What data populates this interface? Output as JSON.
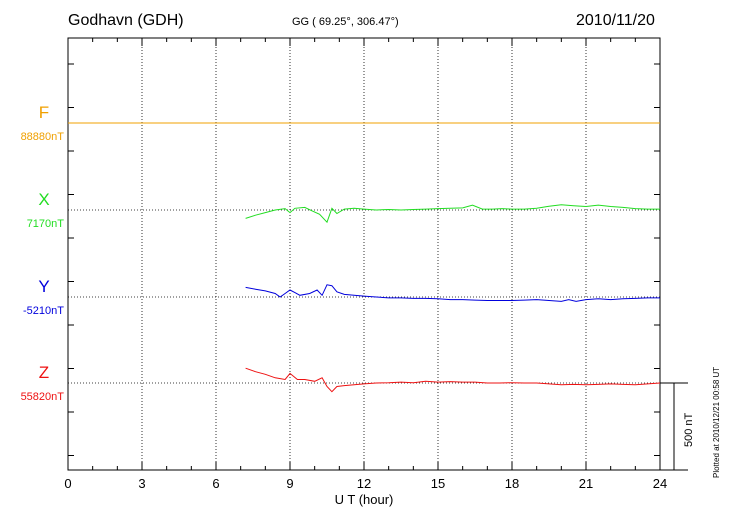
{
  "header": {
    "station": "Godhavn (GDH)",
    "coords": "GG ( 69.25°, 306.47°)",
    "date": "2010/11/20"
  },
  "side_note": "Plotted at 2010/12/21 00:58 UT",
  "scale_label": "500 nT",
  "colors": {
    "F": "#f0a000",
    "X": "#22dd22",
    "Y": "#0000dd",
    "Z": "#ee1111",
    "axis": "#000000"
  },
  "chart_data": {
    "type": "line",
    "title": "Godhavn (GDH)",
    "xlabel": "U T (hour)",
    "ylabel": "",
    "xlim": [
      0,
      24
    ],
    "x_ticks": [
      0,
      3,
      6,
      9,
      12,
      15,
      18,
      21,
      24
    ],
    "x_tick_labels": [
      "0",
      "3",
      "6",
      "9",
      "12",
      "15",
      "18",
      "21",
      "24"
    ],
    "scale_bar_nT": 500,
    "grid": true,
    "series": [
      {
        "name": "F",
        "label": "F",
        "baseline_label": "88880nT",
        "baseline_nT": 88880,
        "points": [
          [
            0,
            0
          ],
          [
            24,
            0
          ]
        ]
      },
      {
        "name": "X",
        "label": "X",
        "baseline_label": "7170nT",
        "baseline_nT": 7170,
        "points": [
          [
            7.2,
            -48
          ],
          [
            7.6,
            -30
          ],
          [
            8.0,
            -15
          ],
          [
            8.4,
            0
          ],
          [
            8.8,
            8
          ],
          [
            9.0,
            -15
          ],
          [
            9.2,
            10
          ],
          [
            9.6,
            15
          ],
          [
            9.9,
            -5
          ],
          [
            10.2,
            -25
          ],
          [
            10.5,
            -70
          ],
          [
            10.7,
            10
          ],
          [
            10.9,
            -20
          ],
          [
            11.2,
            5
          ],
          [
            11.6,
            10
          ],
          [
            12.0,
            5
          ],
          [
            12.5,
            0
          ],
          [
            13.0,
            3
          ],
          [
            13.5,
            0
          ],
          [
            14.0,
            3
          ],
          [
            14.5,
            5
          ],
          [
            15.0,
            8
          ],
          [
            15.5,
            10
          ],
          [
            16.0,
            12
          ],
          [
            16.4,
            28
          ],
          [
            16.8,
            5
          ],
          [
            17.2,
            5
          ],
          [
            17.6,
            8
          ],
          [
            18.0,
            5
          ],
          [
            18.5,
            5
          ],
          [
            19.0,
            10
          ],
          [
            19.5,
            22
          ],
          [
            20.0,
            30
          ],
          [
            20.5,
            25
          ],
          [
            21.0,
            20
          ],
          [
            21.5,
            28
          ],
          [
            22.0,
            20
          ],
          [
            22.5,
            15
          ],
          [
            23.0,
            8
          ],
          [
            23.5,
            5
          ],
          [
            24.0,
            5
          ]
        ]
      },
      {
        "name": "Y",
        "label": "Y",
        "baseline_label": "-5210nT",
        "baseline_nT": -5210,
        "points": [
          [
            7.2,
            55
          ],
          [
            7.6,
            45
          ],
          [
            8.0,
            35
          ],
          [
            8.4,
            20
          ],
          [
            8.6,
            0
          ],
          [
            8.8,
            20
          ],
          [
            9.0,
            40
          ],
          [
            9.2,
            25
          ],
          [
            9.4,
            10
          ],
          [
            9.8,
            20
          ],
          [
            10.1,
            40
          ],
          [
            10.3,
            10
          ],
          [
            10.5,
            70
          ],
          [
            10.7,
            65
          ],
          [
            10.9,
            30
          ],
          [
            11.2,
            15
          ],
          [
            11.6,
            10
          ],
          [
            12.0,
            5
          ],
          [
            12.5,
            0
          ],
          [
            13.0,
            -5
          ],
          [
            13.5,
            -5
          ],
          [
            14.0,
            -8
          ],
          [
            14.5,
            -8
          ],
          [
            15.0,
            -10
          ],
          [
            15.5,
            -15
          ],
          [
            16.0,
            -15
          ],
          [
            16.5,
            -18
          ],
          [
            17.0,
            -20
          ],
          [
            17.5,
            -20
          ],
          [
            18.0,
            -20
          ],
          [
            18.5,
            -18
          ],
          [
            19.0,
            -15
          ],
          [
            19.5,
            -20
          ],
          [
            20.0,
            -25
          ],
          [
            20.3,
            -15
          ],
          [
            20.6,
            -25
          ],
          [
            21.0,
            -15
          ],
          [
            21.5,
            -10
          ],
          [
            22.0,
            -15
          ],
          [
            22.5,
            -10
          ],
          [
            23.0,
            -8
          ],
          [
            23.5,
            -5
          ],
          [
            24.0,
            -5
          ]
        ]
      },
      {
        "name": "Z",
        "label": "Z",
        "baseline_label": "55820nT",
        "baseline_nT": 55820,
        "points": [
          [
            7.2,
            85
          ],
          [
            7.6,
            65
          ],
          [
            8.0,
            50
          ],
          [
            8.4,
            30
          ],
          [
            8.8,
            20
          ],
          [
            9.0,
            55
          ],
          [
            9.3,
            20
          ],
          [
            9.6,
            20
          ],
          [
            10.0,
            10
          ],
          [
            10.3,
            30
          ],
          [
            10.5,
            -20
          ],
          [
            10.7,
            -50
          ],
          [
            10.9,
            -20
          ],
          [
            11.2,
            -15
          ],
          [
            11.6,
            -10
          ],
          [
            12.0,
            -5
          ],
          [
            12.5,
            0
          ],
          [
            13.0,
            2
          ],
          [
            13.5,
            5
          ],
          [
            14.0,
            2
          ],
          [
            14.5,
            10
          ],
          [
            15.0,
            5
          ],
          [
            15.5,
            8
          ],
          [
            16.0,
            5
          ],
          [
            16.5,
            5
          ],
          [
            17.0,
            0
          ],
          [
            17.5,
            0
          ],
          [
            18.0,
            2
          ],
          [
            18.5,
            0
          ],
          [
            19.0,
            0
          ],
          [
            19.5,
            -5
          ],
          [
            20.0,
            -10
          ],
          [
            20.5,
            -8
          ],
          [
            21.0,
            -10
          ],
          [
            21.5,
            -8
          ],
          [
            22.0,
            -5
          ],
          [
            22.5,
            -8
          ],
          [
            23.0,
            -10
          ],
          [
            23.5,
            -5
          ],
          [
            24.0,
            0
          ]
        ]
      }
    ]
  }
}
